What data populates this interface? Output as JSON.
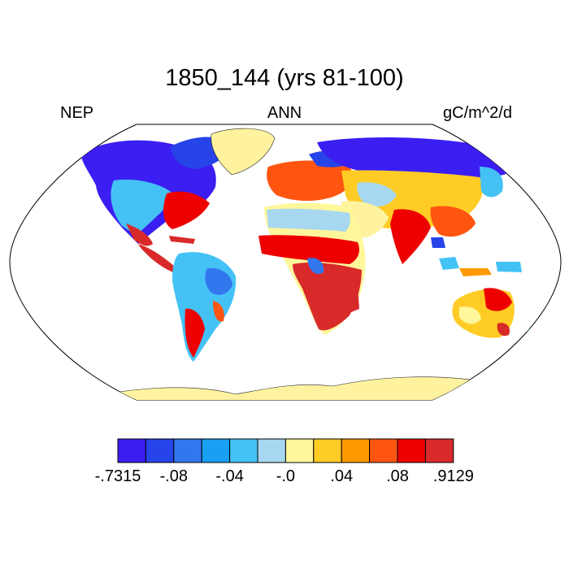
{
  "title": "1850_144 (yrs 81-100)",
  "left_label": "NEP",
  "center_label": "ANN",
  "right_label": "gC/m^2/d",
  "colorbar": {
    "colors": [
      "#3a1ef2",
      "#2644e8",
      "#3377ee",
      "#19a0f5",
      "#44c2f5",
      "#a8d8ef",
      "#fff79a",
      "#ffcc26",
      "#ff9900",
      "#ff5511",
      "#ee0000",
      "#d92a2a"
    ],
    "tick_labels": [
      "-.7315",
      "-.08",
      "-.04",
      "-.0",
      ".04",
      ".08",
      ".9129"
    ]
  },
  "colors": {
    "antarctica": "#fff3a0",
    "ocean": "#ffffff"
  }
}
